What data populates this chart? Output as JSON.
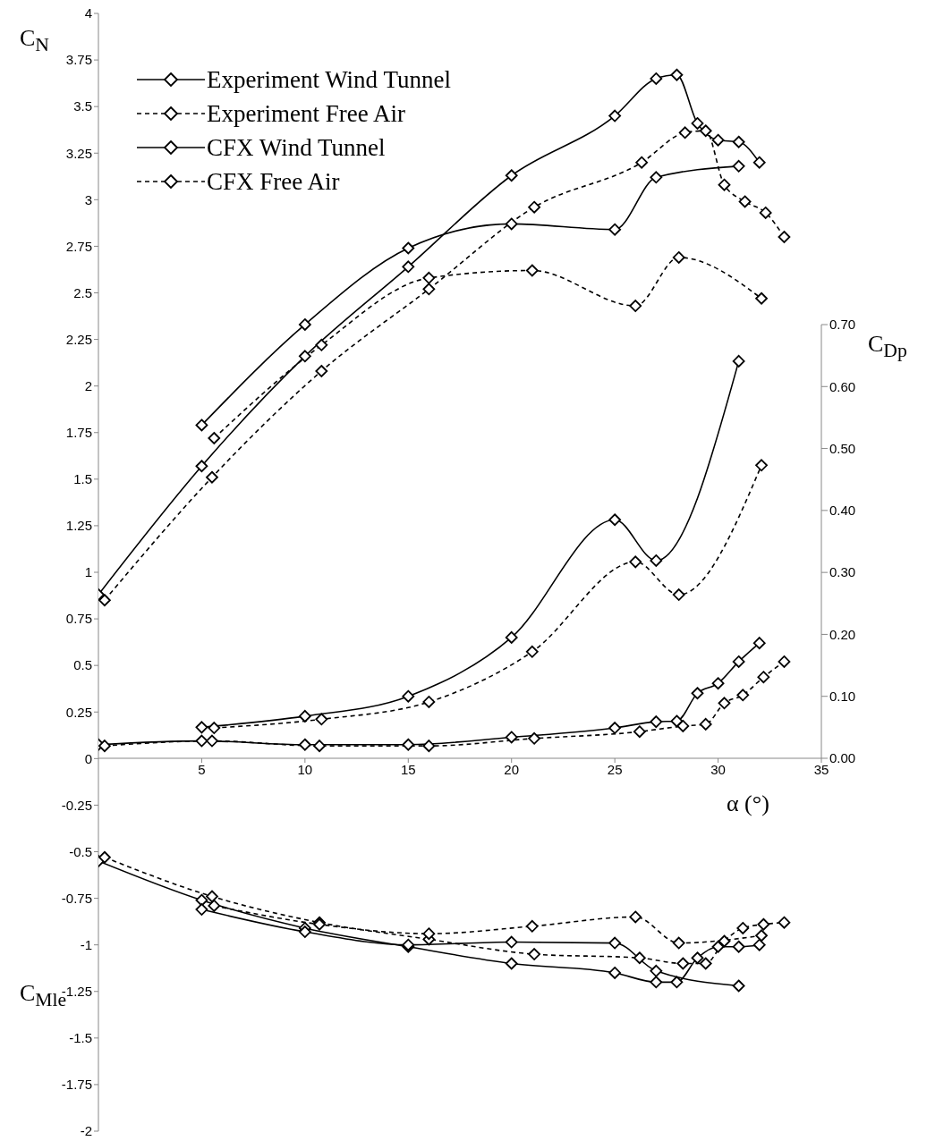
{
  "chart_data": {
    "type": "line",
    "xlabel": "α (°)",
    "ylabel": "C$_{N}$",
    "y2label": "C$_{Dp}$",
    "annotations": [
      "C$_{Mle}$"
    ],
    "xlim": [
      0,
      35
    ],
    "xticks": [
      5,
      10,
      15,
      20,
      25,
      30,
      35
    ],
    "ylim": [
      -2,
      4
    ],
    "yticks": [
      -2,
      -1.75,
      -1.5,
      -1.25,
      -1,
      -0.75,
      -0.5,
      -0.25,
      0,
      0.25,
      0.5,
      0.75,
      1,
      1.25,
      1.5,
      1.75,
      2,
      2.25,
      2.5,
      2.75,
      3,
      3.25,
      3.5,
      3.75,
      4
    ],
    "y2lim": [
      0,
      0.7
    ],
    "y2ticks": [
      {
        "value": 0,
        "label": "0.00"
      },
      {
        "value": 0.1,
        "label": "0.10"
      },
      {
        "value": 0.2,
        "label": "0.20"
      },
      {
        "value": 0.3,
        "label": "0.30"
      },
      {
        "value": 0.4,
        "label": "0.40"
      },
      {
        "value": 0.5,
        "label": "0.50"
      },
      {
        "value": 0.6,
        "label": "0.60"
      },
      {
        "value": 0.7,
        "label": "0.70"
      }
    ],
    "legend": "top left",
    "marker": "diamond",
    "series": [
      {
        "name": "Experiment Wind Tunnel",
        "color": "#000000",
        "line_style": "solid",
        "x": [
          0,
          5,
          10,
          15,
          20,
          25,
          27,
          28,
          29,
          30,
          31,
          32
        ],
        "values": [
          0.88,
          1.57,
          2.16,
          2.64,
          3.13,
          3.45,
          3.65,
          3.67,
          3.41,
          3.32,
          3.31,
          3.2
        ]
      },
      {
        "name": "Experiment Free Air",
        "color": "#000000",
        "line_style": "dashed",
        "x": [
          0.3,
          5.5,
          10.8,
          16,
          21.1,
          26.3,
          28.4,
          29.4,
          30.3,
          31.3,
          32.3,
          33.2
        ],
        "values": [
          0.85,
          1.51,
          2.08,
          2.52,
          2.96,
          3.2,
          3.36,
          3.37,
          3.08,
          2.99,
          2.93,
          2.8
        ]
      },
      {
        "name": "CFX Wind Tunnel",
        "color": "#000000",
        "line_style": "solid",
        "x": [
          5,
          10,
          15,
          20,
          25,
          27,
          31
        ],
        "values": [
          1.79,
          2.33,
          2.74,
          2.87,
          2.84,
          3.12,
          3.18
        ]
      },
      {
        "name": "CFX Free Air",
        "color": "#000000",
        "line_style": "dashed",
        "x": [
          5.6,
          10.8,
          16,
          21,
          26,
          28.1,
          32.1
        ],
        "values": [
          1.72,
          2.22,
          2.58,
          2.62,
          2.43,
          2.69,
          2.47
        ]
      },
      {
        "color": "#000000",
        "line_style": "solid",
        "axis": "y2",
        "x": [
          0,
          5,
          10,
          15,
          20,
          25,
          27,
          28,
          29,
          30,
          31,
          32
        ],
        "values": [
          0.022,
          0.028,
          0.022,
          0.022,
          0.034,
          0.049,
          0.059,
          0.06,
          0.105,
          0.121,
          0.156,
          0.186
        ]
      },
      {
        "color": "#000000",
        "line_style": "dashed",
        "axis": "y2",
        "x": [
          0.3,
          5.5,
          10.7,
          16,
          21.1,
          26.2,
          28.3,
          29.4,
          30.3,
          31.2,
          32.2,
          33.2
        ],
        "values": [
          0.02,
          0.028,
          0.02,
          0.02,
          0.032,
          0.043,
          0.052,
          0.055,
          0.089,
          0.102,
          0.131,
          0.156
        ]
      },
      {
        "color": "#000000",
        "line_style": "solid",
        "axis": "y2",
        "x": [
          5,
          10,
          15,
          20,
          25,
          27,
          31
        ],
        "values": [
          0.05,
          0.068,
          0.1,
          0.195,
          0.385,
          0.319,
          0.641
        ]
      },
      {
        "color": "#000000",
        "line_style": "dashed",
        "axis": "y2",
        "x": [
          5.6,
          10.8,
          16,
          21,
          26,
          28.1,
          32.1
        ],
        "values": [
          0.049,
          0.063,
          0.091,
          0.172,
          0.317,
          0.264,
          0.473
        ]
      },
      {
        "color": "#000000",
        "line_style": "solid",
        "x": [
          0,
          5,
          10,
          15,
          20,
          25,
          27,
          28,
          29,
          30,
          31,
          32
        ],
        "values": [
          -0.55,
          -0.76,
          -0.91,
          -1.01,
          -1.1,
          -1.15,
          -1.2,
          -1.2,
          -1.07,
          -1.01,
          -1.01,
          -1
        ]
      },
      {
        "color": "#000000",
        "line_style": "dashed",
        "x": [
          0.3,
          5.5,
          10.7,
          16,
          21.1,
          26.2,
          28.3,
          29.4,
          30.3,
          31.2,
          32.2,
          33.2
        ],
        "values": [
          -0.53,
          -0.74,
          -0.88,
          -0.97,
          -1.05,
          -1.07,
          -1.1,
          -1.1,
          -0.98,
          -0.91,
          -0.89,
          -0.88
        ]
      },
      {
        "color": "#000000",
        "line_style": "solid",
        "x": [
          5,
          10,
          15,
          20,
          25,
          27,
          31
        ],
        "values": [
          -0.81,
          -0.93,
          -1,
          -0.985,
          -0.99,
          -1.14,
          -1.22
        ]
      },
      {
        "color": "#000000",
        "line_style": "dashed",
        "x": [
          5.6,
          10.7,
          16,
          21,
          26,
          28.1,
          32.1
        ],
        "values": [
          -0.79,
          -0.89,
          -0.94,
          -0.9,
          -0.85,
          -0.99,
          -0.95
        ]
      }
    ]
  }
}
